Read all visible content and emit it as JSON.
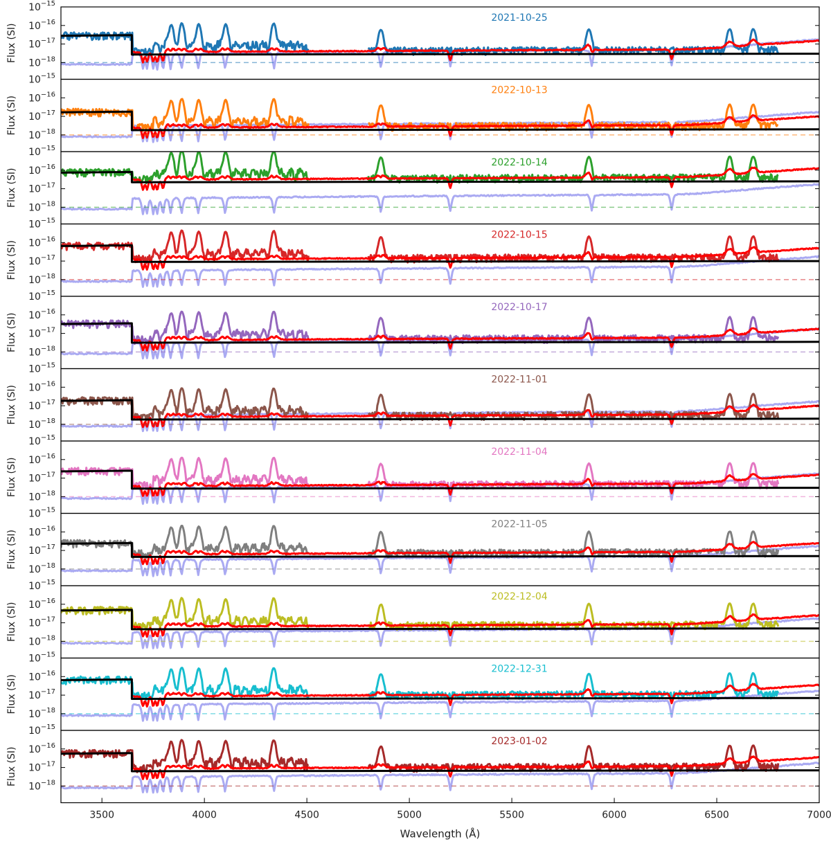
{
  "chart_data": {
    "type": "line",
    "layout": "stacked-panels",
    "xlabel": "Wavelength (Å)",
    "ylabel": "Flux (SI)",
    "xlim": [
      3300,
      7000
    ],
    "xticks": [
      3500,
      4000,
      4500,
      5000,
      5500,
      6000,
      6500,
      7000
    ],
    "ylim_log10": [
      -18.9,
      -15
    ],
    "yscale": "log",
    "ytick_labels": [
      {
        "base": "10",
        "exp": "−15",
        "value": 1e-15
      },
      {
        "base": "10",
        "exp": "−16",
        "value": 1e-16
      },
      {
        "base": "10",
        "exp": "−17",
        "value": 1e-17
      },
      {
        "base": "10",
        "exp": "−18",
        "value": 1e-18
      }
    ],
    "grid": false,
    "legend": "none",
    "panels": [
      {
        "date": "2021-10-25",
        "color": "#1f77b4",
        "model_left": 3e-17,
        "model_right": 3e-18
      },
      {
        "date": "2022-10-13",
        "color": "#ff7f0e",
        "model_left": 1.8e-17,
        "model_right": 2e-18
      },
      {
        "date": "2022-10-14",
        "color": "#2ca02c",
        "model_left": 8e-17,
        "model_right": 2.5e-17
      },
      {
        "date": "2022-10-15",
        "color": "#d62728",
        "model_left": 7e-17,
        "model_right": 1e-17
      },
      {
        "date": "2022-10-17",
        "color": "#9467bd",
        "model_left": 3.5e-17,
        "model_right": 3.5e-18
      },
      {
        "date": "2022-11-01",
        "color": "#8c564b",
        "model_left": 2e-17,
        "model_right": 2e-18
      },
      {
        "date": "2022-11-04",
        "color": "#e377c2",
        "model_left": 2.5e-17,
        "model_right": 3e-18
      },
      {
        "date": "2022-11-05",
        "color": "#7f7f7f",
        "model_left": 2.5e-17,
        "model_right": 5e-18
      },
      {
        "date": "2022-12-04",
        "color": "#bcbd22",
        "model_left": 5e-17,
        "model_right": 5e-18
      },
      {
        "date": "2022-12-31",
        "color": "#17becf",
        "model_left": 7e-17,
        "model_right": 7e-18
      },
      {
        "date": "2023-01-02",
        "color": "#a52a2a",
        "model_left": 6e-17,
        "model_right": 7e-18
      }
    ],
    "balmer_jump": 3646,
    "series_colors": {
      "model": "#000000",
      "fit": "#ff0000",
      "template": "#aaaaf2"
    }
  }
}
